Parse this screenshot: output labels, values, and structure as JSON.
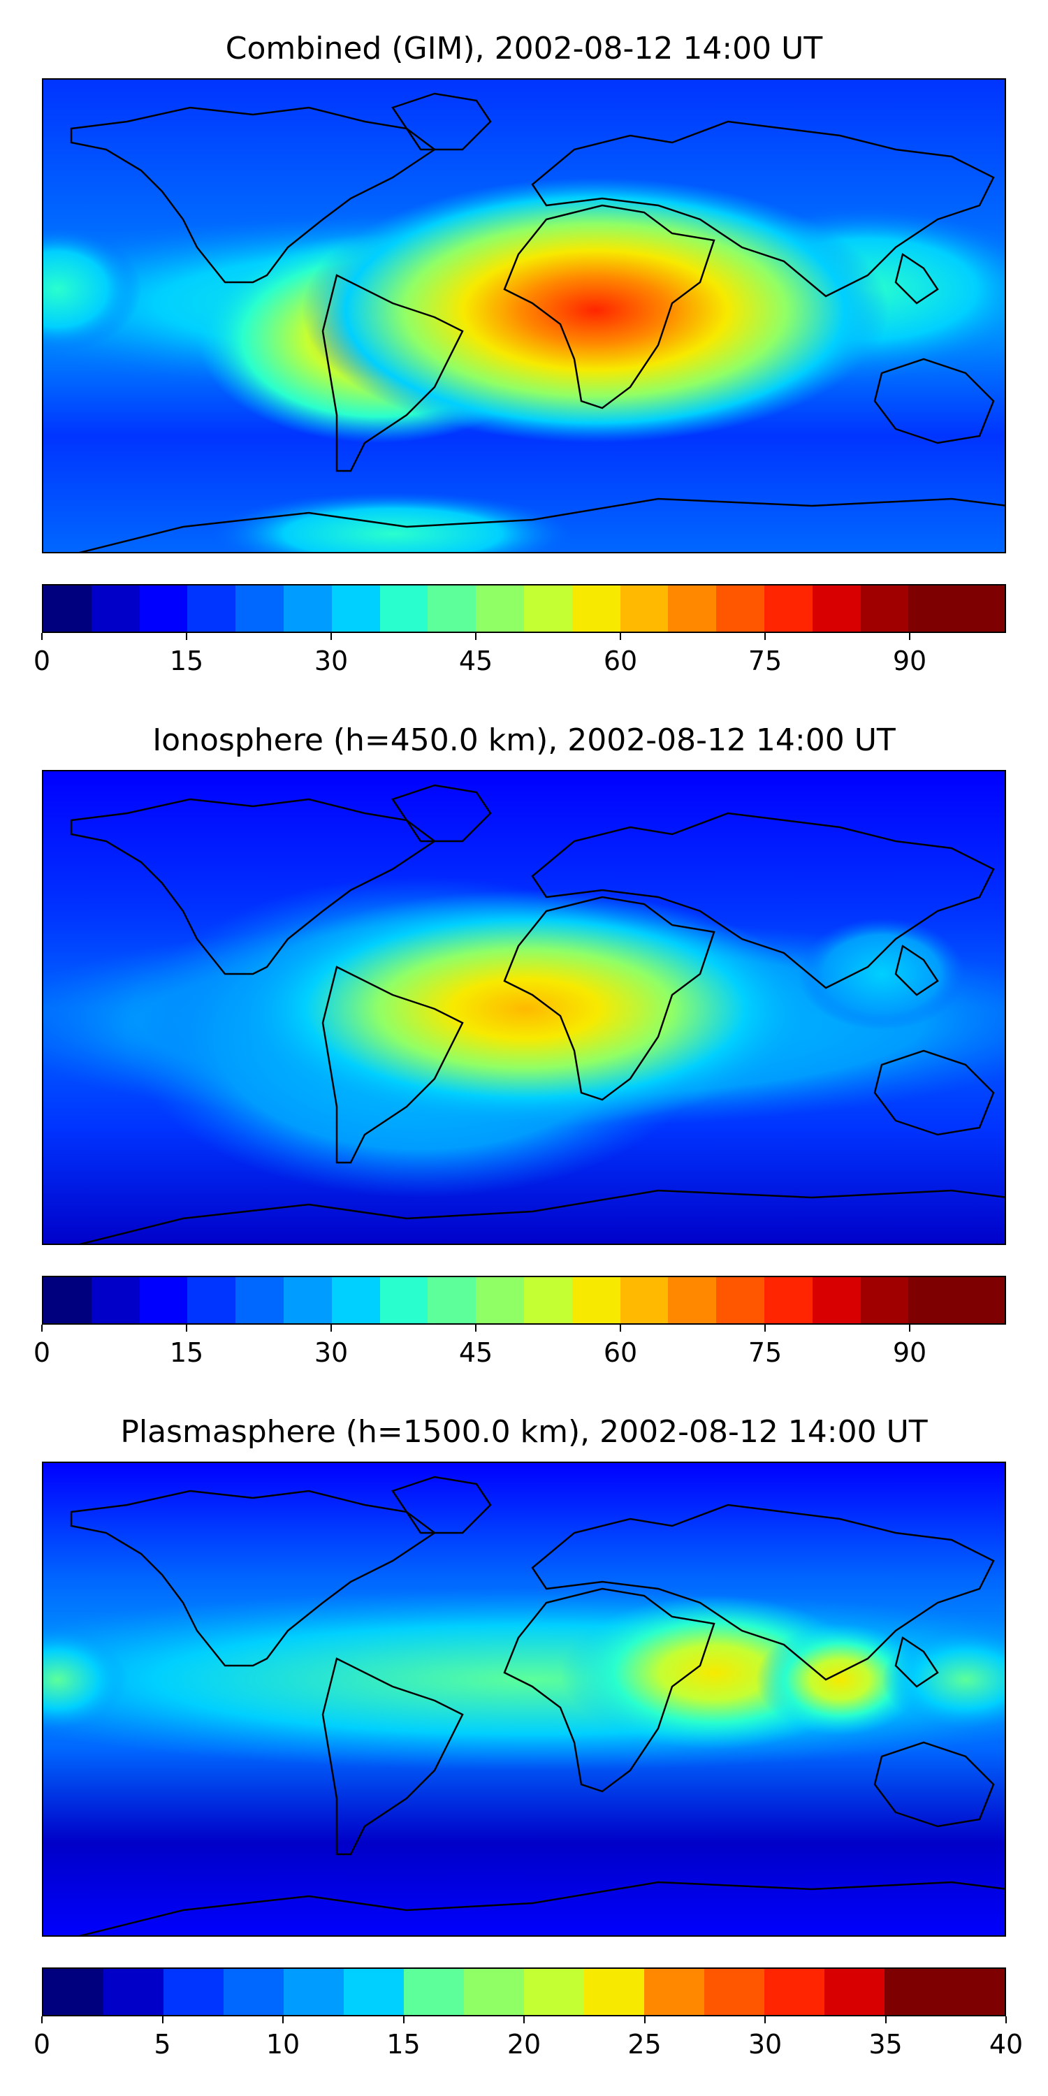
{
  "panels": [
    {
      "title": "Combined (GIM), 2002-08-12 14:00 UT",
      "colorbar": {
        "min": 0,
        "max": 100,
        "step": 5,
        "tick_labels": [
          "0",
          "15",
          "30",
          "45",
          "60",
          "75",
          "90"
        ],
        "tick_values": [
          0,
          15,
          30,
          45,
          60,
          75,
          90
        ]
      }
    },
    {
      "title": "Ionosphere  (h=450.0 km), 2002-08-12 14:00 UT",
      "colorbar": {
        "min": 0,
        "max": 100,
        "step": 5,
        "tick_labels": [
          "0",
          "15",
          "30",
          "45",
          "60",
          "75",
          "90"
        ],
        "tick_values": [
          0,
          15,
          30,
          45,
          60,
          75,
          90
        ]
      }
    },
    {
      "title": "Plasmasphere (h=1500.0 km), 2002-08-12 14:00 UT",
      "colorbar": {
        "min": 0,
        "max": 40,
        "step": 2.5,
        "tick_labels": [
          "0",
          "5",
          "10",
          "15",
          "20",
          "25",
          "30",
          "35",
          "40"
        ],
        "tick_values": [
          0,
          5,
          10,
          15,
          20,
          25,
          30,
          35,
          40
        ]
      }
    }
  ],
  "colormap": "jet",
  "colors": {
    "jet": [
      "#00007f",
      "#0000c8",
      "#0000ff",
      "#0034ff",
      "#0068ff",
      "#009cff",
      "#00d0ff",
      "#29ffce",
      "#5dff9a",
      "#90ff66",
      "#c4ff33",
      "#f7ea00",
      "#ffb900",
      "#ff8800",
      "#ff5600",
      "#ff2500",
      "#d80000",
      "#a00000",
      "#7f0000",
      "#7f0000"
    ]
  }
}
